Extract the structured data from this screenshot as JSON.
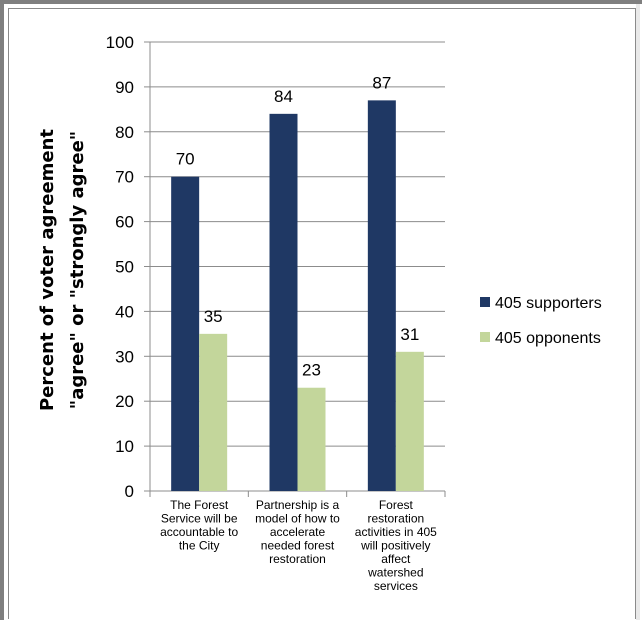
{
  "chart_data": {
    "type": "bar",
    "ylabel": [
      "Percent of voter agreement",
      "\"agree\" or \"strongly agree\""
    ],
    "ylim": [
      0,
      100
    ],
    "yticks": [
      0,
      10,
      20,
      30,
      40,
      50,
      60,
      70,
      80,
      90,
      100
    ],
    "grid": true,
    "legend_position": "right",
    "categories": [
      [
        "The Forest",
        "Service will be",
        "accountable to",
        "the City"
      ],
      [
        "Partnership is a",
        "model of how to",
        "accelerate",
        "needed forest",
        "restoration"
      ],
      [
        "Forest",
        "restoration",
        "activities in 405",
        "will positively",
        "affect",
        "watershed",
        "services"
      ]
    ],
    "series": [
      {
        "name": "405 supporters",
        "values": [
          70,
          84,
          87
        ],
        "color": "#1f3864"
      },
      {
        "name": "405 opponents",
        "values": [
          35,
          23,
          31
        ],
        "color": "#c3d69b"
      }
    ]
  }
}
